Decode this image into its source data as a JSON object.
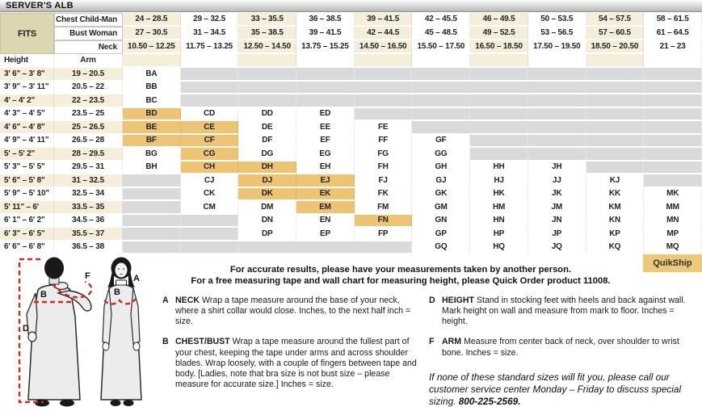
{
  "title": "SERVER'S ALB",
  "colors": {
    "fits_tan": "#ded6b1",
    "stripe_cream": "#f4eeda",
    "highlight_orange": "#ecc474",
    "empty_gray": "#d9dadc",
    "quikship_bg": "#ecc878",
    "measure_red": "#cc2d1f"
  },
  "header": {
    "fits_label": "FITS",
    "height_label": "Height",
    "arm_label": "Arm",
    "rows": [
      {
        "label": "Chest Child-Man",
        "values": [
          "24 – 28.5",
          "29 – 32.5",
          "33 – 35.5",
          "36 – 38.5",
          "39 – 41.5",
          "42 – 45.5",
          "46 – 49.5",
          "50 – 53.5",
          "54 – 57.5",
          "58 – 61.5"
        ]
      },
      {
        "label": "Bust Woman",
        "values": [
          "27 – 30.5",
          "31 – 34.5",
          "35 – 38.5",
          "39 – 41.5",
          "42 – 44.5",
          "45 – 48.5",
          "49 – 52.5",
          "53 – 56.5",
          "57 – 60.5",
          "61 – 64.5"
        ]
      },
      {
        "label": "Neck",
        "values": [
          "10.50 – 12.25",
          "11.75 – 13.25",
          "12.50 – 14.50",
          "13.75 – 15.25",
          "14.50 – 16.50",
          "15.50 – 17.50",
          "16.50 – 18.50",
          "17.50 – 19.50",
          "18.50 – 20.50",
          "21 – 23"
        ]
      }
    ]
  },
  "table": {
    "rows": [
      {
        "height": "3' 6\" – 3' 8\"",
        "arm": "19 – 20.5",
        "sizes": [
          "BA",
          "",
          "",
          "",
          "",
          "",
          "",
          "",
          "",
          ""
        ],
        "hl": []
      },
      {
        "height": "3' 9\" – 3' 11\"",
        "arm": "20.5 – 22",
        "sizes": [
          "BB",
          "",
          "",
          "",
          "",
          "",
          "",
          "",
          "",
          ""
        ],
        "hl": []
      },
      {
        "height": "4' – 4' 2\"",
        "arm": "22 – 23.5",
        "sizes": [
          "BC",
          "",
          "",
          "",
          "",
          "",
          "",
          "",
          "",
          ""
        ],
        "hl": []
      },
      {
        "height": "4' 3\" – 4' 5\"",
        "arm": "23.5 – 25",
        "sizes": [
          "BD",
          "CD",
          "DD",
          "ED",
          "",
          "",
          "",
          "",
          "",
          ""
        ],
        "hl": [
          0
        ]
      },
      {
        "height": "4' 6\" – 4' 8\"",
        "arm": "25 – 26.5",
        "sizes": [
          "BE",
          "CE",
          "DE",
          "EE",
          "FE",
          "",
          "",
          "",
          "",
          ""
        ],
        "hl": [
          0,
          1
        ]
      },
      {
        "height": "4' 9\" – 4' 11\"",
        "arm": "26.5 – 28",
        "sizes": [
          "BF",
          "CF",
          "DF",
          "EF",
          "FF",
          "GF",
          "",
          "",
          "",
          ""
        ],
        "hl": [
          0,
          1
        ]
      },
      {
        "height": "5' – 5' 2\"",
        "arm": "28 – 29.5",
        "sizes": [
          "BG",
          "CG",
          "DG",
          "EG",
          "FG",
          "GG",
          "",
          "",
          "",
          ""
        ],
        "hl": [
          1
        ]
      },
      {
        "height": "5' 3\" – 5' 5\"",
        "arm": "29.5 – 31",
        "sizes": [
          "BH",
          "CH",
          "DH",
          "EH",
          "FH",
          "GH",
          "HH",
          "JH",
          "",
          ""
        ],
        "hl": [
          1,
          2
        ]
      },
      {
        "height": "5' 6\" – 5' 8\"",
        "arm": "31 – 32.5",
        "sizes": [
          "",
          "CJ",
          "DJ",
          "EJ",
          "FJ",
          "GJ",
          "HJ",
          "JJ",
          "KJ",
          ""
        ],
        "hl": [
          2,
          3
        ]
      },
      {
        "height": "5' 9\" – 5' 10\"",
        "arm": "32.5 – 34",
        "sizes": [
          "",
          "CK",
          "DK",
          "EK",
          "FK",
          "GK",
          "HK",
          "JK",
          "KK",
          "MK"
        ],
        "hl": [
          2,
          3
        ]
      },
      {
        "height": "5' 11\" – 6'",
        "arm": "33.5 – 35",
        "sizes": [
          "",
          "CM",
          "DM",
          "EM",
          "FM",
          "GM",
          "HM",
          "JM",
          "KM",
          "MM"
        ],
        "hl": [
          3
        ]
      },
      {
        "height": "6' 1\" – 6' 2\"",
        "arm": "34.5 – 36",
        "sizes": [
          "",
          "",
          "DN",
          "EN",
          "FN",
          "GN",
          "HN",
          "JN",
          "KN",
          "MN"
        ],
        "hl": [
          4
        ]
      },
      {
        "height": "6' 3\" – 6' 5\"",
        "arm": "35.5 – 37",
        "sizes": [
          "",
          "",
          "DP",
          "EP",
          "FP",
          "GP",
          "HP",
          "JP",
          "KP",
          "MP"
        ],
        "hl": []
      },
      {
        "height": "6' 6\" – 6' 8\"",
        "arm": "36.5 – 38",
        "sizes": [
          "",
          "",
          "",
          "",
          "",
          "GQ",
          "HQ",
          "JQ",
          "KQ",
          "MQ"
        ],
        "hl": []
      }
    ]
  },
  "notes": {
    "intro_line1": "For accurate results, please have your measurements taken by another person.",
    "intro_line2": "For a free measuring tape and wall chart for measuring height, please Quick Order product 11008.",
    "items": [
      {
        "key": "A",
        "term": "NECK",
        "text": "Wrap a tape measure around the base of your neck, where a shirt collar would close. Inches, to the next half inch = size."
      },
      {
        "key": "B",
        "term": "CHEST/BUST",
        "text": "Wrap a tape measure around the fullest part of your chest, keeping the tape under arms and across shoulder blades. Wrap loosely, with a couple of fingers between tape and body. [Ladies, note that bra size is not bust size – please measure for accurate size.] Inches = size."
      },
      {
        "key": "D",
        "term": "HEIGHT",
        "text": "Stand in stocking feet with heels and back against wall. Mark height on wall and measure from mark to floor. Inches = height."
      },
      {
        "key": "F",
        "term": "ARM",
        "text": "Measure from center back of neck, over shoulder to wrist bone. Inches = size."
      }
    ],
    "special_text": "If none of these standard sizes will fit you, please call our customer service center Monday – Friday to discuss special sizing. ",
    "special_phone": "800-225-2569.",
    "quikship_label": "QuikShip"
  },
  "diagram": {
    "label_a": "A",
    "label_b": "B",
    "label_d": "D",
    "label_f": "F"
  }
}
